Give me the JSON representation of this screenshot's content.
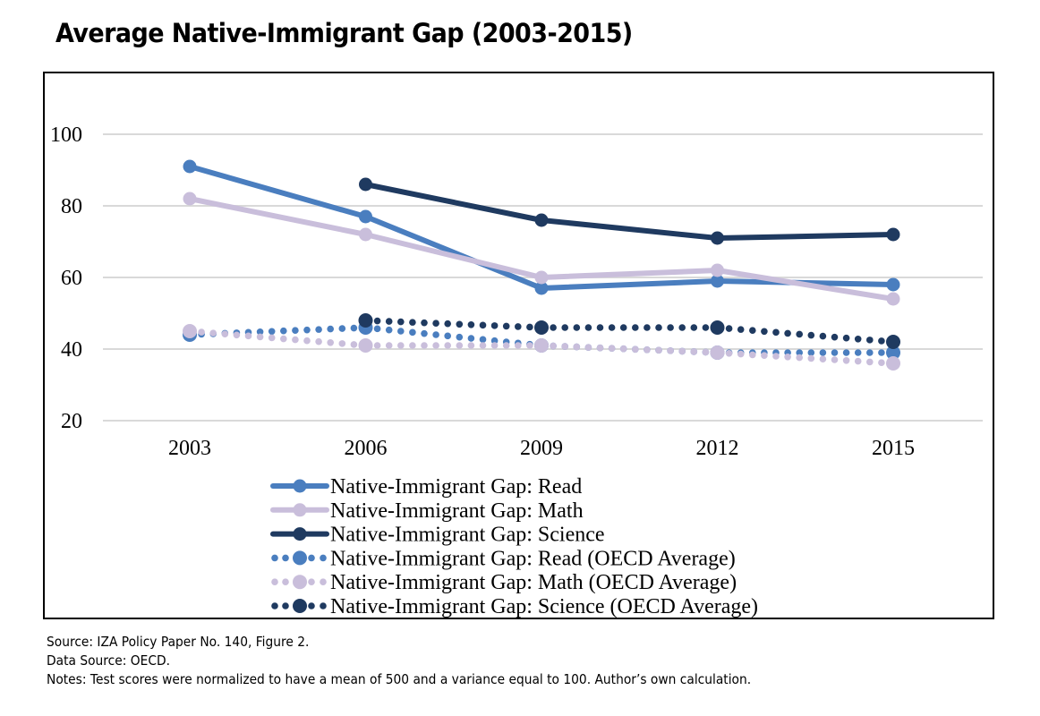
{
  "title": "Average Native-Immigrant Gap (2003-2015)",
  "notes": {
    "source": "Source: IZA Policy Paper No. 140, Figure 2.",
    "data_source": "Data Source: OECD.",
    "notes": "Notes: Test scores were normalized to have a mean of 500 and a variance equal to 100. Author’s own calculation."
  },
  "chart_data": {
    "type": "line",
    "title": "Average Native-Immigrant Gap (2003-2015)",
    "xlabel": "",
    "ylabel": "",
    "x": [
      "2003",
      "2006",
      "2009",
      "2012",
      "2015"
    ],
    "ylim": [
      20,
      110
    ],
    "yticks": [
      20,
      40,
      60,
      80,
      100
    ],
    "grid": true,
    "legend_position": "bottom",
    "series": [
      {
        "name": "Native-Immigrant Gap: Read",
        "values": [
          91,
          77,
          57,
          59,
          58
        ],
        "color": "#4a7ebf",
        "style": "solid"
      },
      {
        "name": "Native-Immigrant Gap: Math",
        "values": [
          82,
          72,
          60,
          62,
          54
        ],
        "color": "#c9bedb",
        "style": "solid"
      },
      {
        "name": "Native-Immigrant Gap: Science",
        "values": [
          null,
          86,
          76,
          71,
          72
        ],
        "color": "#1f3a60",
        "style": "solid"
      },
      {
        "name": "Native-Immigrant Gap: Read (OECD Average)",
        "values": [
          44,
          46,
          41,
          39,
          39
        ],
        "color": "#4a7ebf",
        "style": "dotted"
      },
      {
        "name": "Native-Immigrant Gap: Math (OECD Average)",
        "values": [
          45,
          41,
          41,
          39,
          36
        ],
        "color": "#c9bedb",
        "style": "dotted"
      },
      {
        "name": "Native-Immigrant Gap: Science (OECD Average)",
        "values": [
          null,
          48,
          46,
          46,
          42
        ],
        "color": "#1f3a60",
        "style": "dotted"
      }
    ]
  }
}
